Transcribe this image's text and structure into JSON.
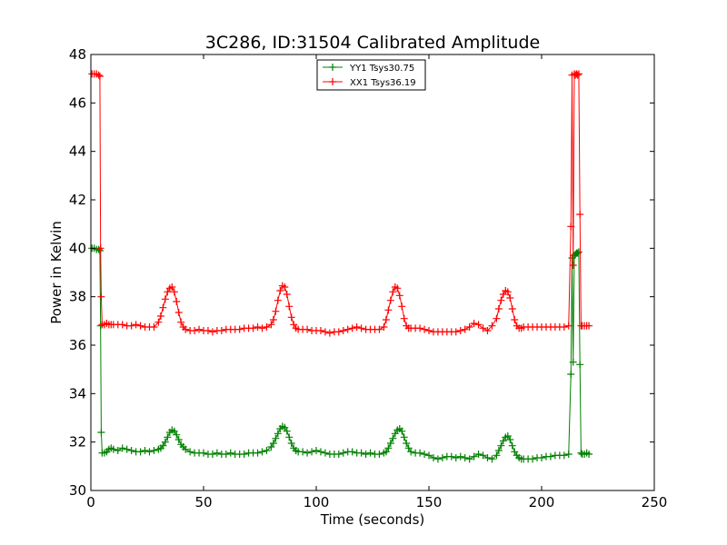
{
  "chart_data": {
    "type": "line",
    "title": "3C286, ID:31504 Calibrated Amplitude",
    "xlabel": "Time (seconds)",
    "ylabel": "Power in Kelvin",
    "xlim": [
      0,
      250
    ],
    "ylim": [
      30,
      48
    ],
    "xticks": [
      0,
      50,
      100,
      150,
      200,
      250
    ],
    "yticks": [
      30,
      32,
      34,
      36,
      38,
      40,
      42,
      44,
      46,
      48
    ],
    "xtick_labels": [
      "0",
      "50",
      "100",
      "150",
      "200",
      "250"
    ],
    "ytick_labels": [
      "30",
      "32",
      "34",
      "36",
      "38",
      "40",
      "42",
      "44",
      "46",
      "48"
    ],
    "grid": false,
    "legend_position": "top-center",
    "marker": "plus",
    "series": [
      {
        "name": "YY1 Tsys30.75",
        "color": "#008000",
        "x": [
          0.5,
          1.5,
          2.5,
          3.5,
          4.0,
          4.3,
          4.6,
          5,
          6,
          7,
          8,
          9,
          10,
          12,
          14,
          16,
          18,
          20,
          22,
          24,
          26,
          28,
          30,
          31,
          32,
          33,
          34,
          35,
          36,
          37,
          38,
          39,
          40,
          41,
          42,
          44,
          46,
          48,
          50,
          52,
          54,
          56,
          58,
          60,
          62,
          64,
          66,
          68,
          70,
          72,
          74,
          76,
          78,
          80,
          81,
          82,
          83,
          84,
          85,
          86,
          87,
          88,
          89,
          90,
          91,
          92,
          94,
          96,
          98,
          100,
          102,
          104,
          106,
          108,
          110,
          112,
          114,
          116,
          118,
          120,
          122,
          124,
          126,
          128,
          130,
          131,
          132,
          133,
          134,
          135,
          136,
          137,
          138,
          139,
          140,
          141,
          142,
          144,
          146,
          148,
          150,
          152,
          154,
          156,
          158,
          160,
          162,
          164,
          166,
          168,
          170,
          172,
          174,
          176,
          178,
          180,
          181,
          182,
          183,
          184,
          185,
          186,
          187,
          188,
          189,
          190,
          191,
          192,
          194,
          196,
          198,
          200,
          202,
          204,
          206,
          208,
          210,
          212,
          213,
          213.5,
          214,
          214.5,
          215,
          215.5,
          216,
          216.5,
          217,
          217.5,
          218,
          219,
          220,
          221
        ],
        "values": [
          40.0,
          40.0,
          39.95,
          39.95,
          39.9,
          36.8,
          32.4,
          31.55,
          31.55,
          31.6,
          31.7,
          31.75,
          31.7,
          31.65,
          31.75,
          31.7,
          31.65,
          31.6,
          31.6,
          31.65,
          31.6,
          31.65,
          31.7,
          31.75,
          31.85,
          32.0,
          32.2,
          32.4,
          32.5,
          32.45,
          32.3,
          32.1,
          31.9,
          31.8,
          31.7,
          31.6,
          31.55,
          31.55,
          31.55,
          31.5,
          31.5,
          31.55,
          31.5,
          31.5,
          31.55,
          31.5,
          31.5,
          31.5,
          31.55,
          31.55,
          31.55,
          31.6,
          31.65,
          31.8,
          31.95,
          32.15,
          32.35,
          32.55,
          32.65,
          32.6,
          32.45,
          32.2,
          31.95,
          31.75,
          31.65,
          31.6,
          31.6,
          31.55,
          31.6,
          31.65,
          31.6,
          31.55,
          31.5,
          31.5,
          31.5,
          31.55,
          31.6,
          31.6,
          31.55,
          31.55,
          31.5,
          31.55,
          31.5,
          31.5,
          31.55,
          31.6,
          31.75,
          31.95,
          32.15,
          32.35,
          32.5,
          32.55,
          32.45,
          32.2,
          31.95,
          31.75,
          31.6,
          31.55,
          31.55,
          31.5,
          31.45,
          31.35,
          31.3,
          31.35,
          31.4,
          31.4,
          31.35,
          31.4,
          31.35,
          31.3,
          31.4,
          31.5,
          31.45,
          31.35,
          31.3,
          31.45,
          31.65,
          31.85,
          32.05,
          32.2,
          32.25,
          32.1,
          31.85,
          31.6,
          31.45,
          31.35,
          31.3,
          31.3,
          31.3,
          31.3,
          31.35,
          31.35,
          31.4,
          31.4,
          31.45,
          31.45,
          31.45,
          31.5,
          34.8,
          39.6,
          35.3,
          39.7,
          39.75,
          39.8,
          39.8,
          39.85,
          35.2,
          31.55,
          31.5,
          31.5,
          31.55,
          31.5
        ]
      },
      {
        "name": "XX1 Tsys36.19",
        "color": "#ff0000",
        "x": [
          0.5,
          1.5,
          2.5,
          3.5,
          4.0,
          4.3,
          4.6,
          5,
          6,
          7,
          8,
          9,
          10,
          12,
          14,
          16,
          18,
          20,
          22,
          24,
          26,
          28,
          30,
          31,
          32,
          33,
          34,
          35,
          36,
          37,
          38,
          39,
          40,
          41,
          42,
          44,
          46,
          48,
          50,
          52,
          54,
          56,
          58,
          60,
          62,
          64,
          66,
          68,
          70,
          72,
          74,
          76,
          78,
          80,
          81,
          82,
          83,
          84,
          85,
          86,
          87,
          88,
          89,
          90,
          91,
          92,
          94,
          96,
          98,
          100,
          102,
          104,
          106,
          108,
          110,
          112,
          114,
          116,
          118,
          120,
          122,
          124,
          126,
          128,
          130,
          131,
          132,
          133,
          134,
          135,
          136,
          137,
          138,
          139,
          140,
          141,
          142,
          144,
          146,
          148,
          150,
          152,
          154,
          156,
          158,
          160,
          162,
          164,
          166,
          168,
          170,
          172,
          174,
          176,
          178,
          180,
          181,
          182,
          183,
          184,
          185,
          186,
          187,
          188,
          189,
          190,
          191,
          192,
          194,
          196,
          198,
          200,
          202,
          204,
          206,
          208,
          210,
          212,
          213,
          213.5,
          214,
          214.5,
          215,
          215.5,
          216,
          216.5,
          217,
          217.5,
          218,
          219,
          220,
          221
        ],
        "values": [
          47.2,
          47.2,
          47.2,
          47.15,
          47.1,
          40.0,
          38.0,
          36.85,
          36.85,
          36.9,
          36.85,
          36.85,
          36.85,
          36.85,
          36.85,
          36.8,
          36.8,
          36.85,
          36.8,
          36.75,
          36.75,
          36.75,
          36.95,
          37.2,
          37.55,
          37.9,
          38.2,
          38.35,
          38.4,
          38.2,
          37.8,
          37.35,
          36.95,
          36.75,
          36.65,
          36.6,
          36.6,
          36.65,
          36.6,
          36.6,
          36.55,
          36.6,
          36.6,
          36.65,
          36.65,
          36.65,
          36.65,
          36.7,
          36.7,
          36.7,
          36.75,
          36.7,
          36.75,
          36.85,
          37.05,
          37.4,
          37.85,
          38.25,
          38.45,
          38.4,
          38.1,
          37.6,
          37.15,
          36.85,
          36.7,
          36.65,
          36.65,
          36.65,
          36.6,
          36.6,
          36.6,
          36.55,
          36.5,
          36.55,
          36.55,
          36.6,
          36.65,
          36.7,
          36.75,
          36.7,
          36.65,
          36.65,
          36.65,
          36.65,
          36.75,
          37.05,
          37.45,
          37.85,
          38.2,
          38.4,
          38.35,
          38.05,
          37.6,
          37.1,
          36.8,
          36.7,
          36.7,
          36.7,
          36.7,
          36.65,
          36.6,
          36.55,
          36.55,
          36.55,
          36.55,
          36.55,
          36.55,
          36.6,
          36.65,
          36.75,
          36.9,
          36.85,
          36.7,
          36.6,
          36.8,
          37.1,
          37.5,
          37.85,
          38.1,
          38.25,
          38.2,
          37.95,
          37.5,
          37.05,
          36.8,
          36.7,
          36.7,
          36.75,
          36.75,
          36.75,
          36.75,
          36.75,
          36.75,
          36.75,
          36.75,
          36.75,
          36.75,
          36.8,
          40.9,
          47.15,
          39.3,
          47.2,
          47.15,
          47.2,
          47.15,
          47.2,
          41.4,
          36.8,
          36.8,
          36.8,
          36.8,
          36.8
        ]
      }
    ]
  }
}
